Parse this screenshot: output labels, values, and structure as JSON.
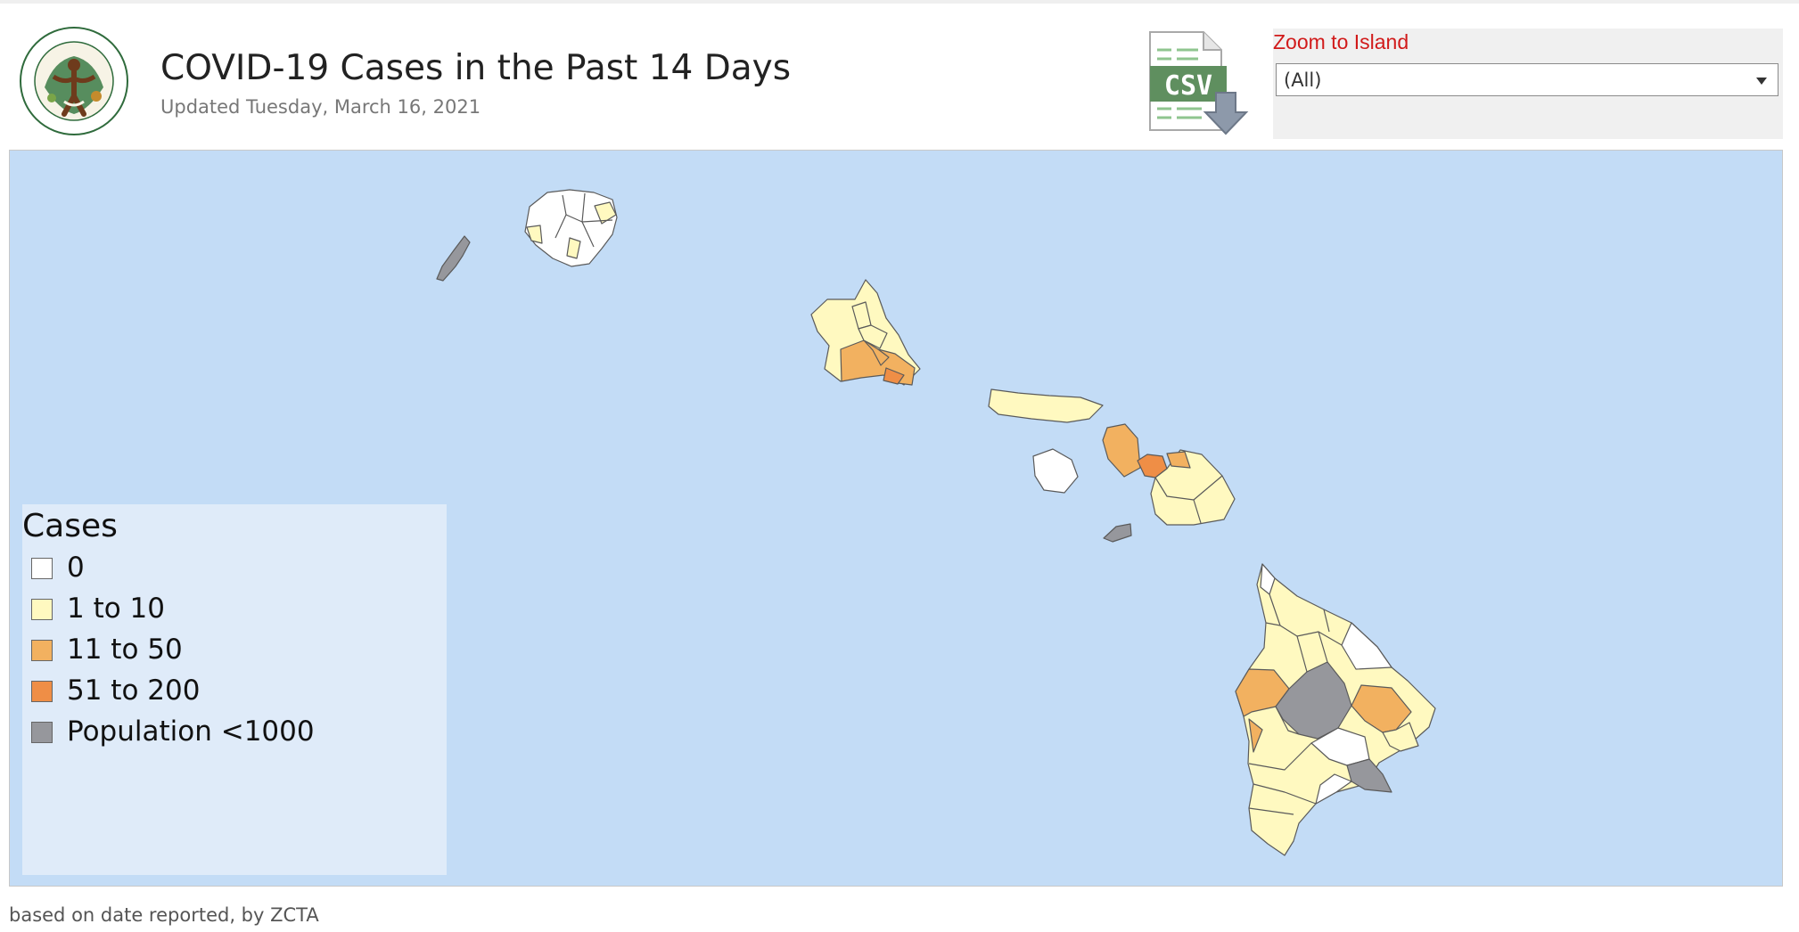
{
  "header": {
    "title": "COVID-19 Cases in the Past 14 Days",
    "subtitle": "Updated Tuesday, March 16, 2021",
    "seal_text": "HAWAII STATE DEPARTMENT OF HEALTH"
  },
  "download": {
    "label": "CSV",
    "icon": "csv-download-icon"
  },
  "zoom": {
    "label": "Zoom to Island",
    "selected": "(All)"
  },
  "legend": {
    "title": "Cases",
    "items": [
      {
        "label": "0",
        "color": "#ffffff"
      },
      {
        "label": "1 to 10",
        "color": "#fff9c0"
      },
      {
        "label": "11 to 50",
        "color": "#f2b160"
      },
      {
        "label": "51 to 200",
        "color": "#ef8e46"
      },
      {
        "label": "Population <1000",
        "color": "#96979c"
      }
    ]
  },
  "map": {
    "ocean_color": "#c3dcf6",
    "islands": [
      "Niihau",
      "Kauai",
      "Oahu",
      "Molokai",
      "Lanai",
      "Maui",
      "Kahoolawe",
      "Hawaii"
    ]
  },
  "footnote": "based on date reported, by ZCTA"
}
